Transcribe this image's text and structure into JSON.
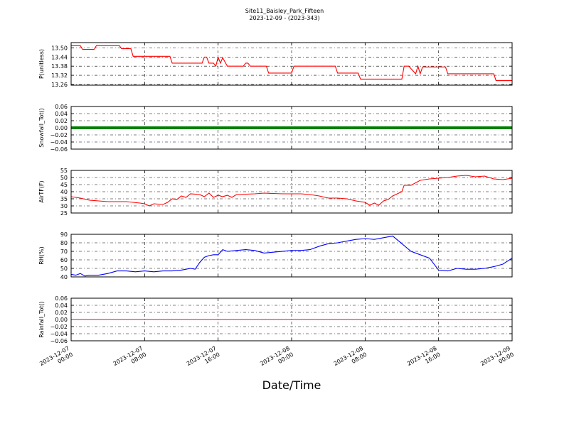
{
  "figure": {
    "title": "Site11_Baisley_Park_Fifteen",
    "subtitle": "2023-12-09 - (2023-343)",
    "xlabel": "Date/Time"
  },
  "x_ticks": [
    {
      "value": "2023-12-07 00:00",
      "line1": "2023-12-07",
      "line2": "00:00"
    },
    {
      "value": "2023-12-07 08:00",
      "line1": "2023-12-07",
      "line2": "08:00"
    },
    {
      "value": "2023-12-07 16:00",
      "line1": "2023-12-07",
      "line2": "16:00"
    },
    {
      "value": "2023-12-08 00:00",
      "line1": "2023-12-08",
      "line2": "00:00"
    },
    {
      "value": "2023-12-08 08:00",
      "line1": "2023-12-08",
      "line2": "08:00"
    },
    {
      "value": "2023-12-08 16:00",
      "line1": "2023-12-08",
      "line2": "16:00"
    },
    {
      "value": "2023-12-09 00:00",
      "line1": "2023-12-09",
      "line2": "00:00"
    }
  ],
  "chart_data": [
    {
      "type": "line",
      "ylabel": "P(unitless)",
      "ylim": [
        13.255,
        13.535
      ],
      "yticks": [
        "13.50",
        "13.44",
        "13.38",
        "13.32",
        "13.26"
      ],
      "grid": true,
      "color": "#ff0000",
      "x": [
        "2023-12-07 00:00",
        "2023-12-07 01:00",
        "2023-12-07 01:15",
        "2023-12-07 02:30",
        "2023-12-07 02:45",
        "2023-12-07 05:15",
        "2023-12-07 05:30",
        "2023-12-07 06:30",
        "2023-12-07 06:45",
        "2023-12-07 10:45",
        "2023-12-07 11:00",
        "2023-12-07 14:15",
        "2023-12-07 14:30",
        "2023-12-07 14:45",
        "2023-12-07 15:00",
        "2023-12-07 15:30",
        "2023-12-07 15:45",
        "2023-12-07 16:00",
        "2023-12-07 16:15",
        "2023-12-07 16:30",
        "2023-12-07 17:00",
        "2023-12-07 18:45",
        "2023-12-07 19:00",
        "2023-12-07 19:15",
        "2023-12-07 19:30",
        "2023-12-07 21:15",
        "2023-12-07 21:30",
        "2023-12-08 00:00",
        "2023-12-08 00:15",
        "2023-12-08 04:45",
        "2023-12-08 05:00",
        "2023-12-08 07:15",
        "2023-12-08 07:30",
        "2023-12-08 12:00",
        "2023-12-08 12:15",
        "2023-12-08 12:45",
        "2023-12-08 13:30",
        "2023-12-08 13:45",
        "2023-12-08 14:00",
        "2023-12-08 14:15",
        "2023-12-08 16:45",
        "2023-12-08 17:00",
        "2023-12-08 19:45",
        "2023-12-08 20:00",
        "2023-12-08 22:00",
        "2023-12-08 22:15",
        "2023-12-09 00:00"
      ],
      "y": [
        13.515,
        13.515,
        13.49,
        13.49,
        13.515,
        13.515,
        13.495,
        13.495,
        13.445,
        13.445,
        13.4,
        13.4,
        13.44,
        13.44,
        13.4,
        13.4,
        13.38,
        13.44,
        13.4,
        13.435,
        13.38,
        13.38,
        13.4,
        13.4,
        13.38,
        13.38,
        13.335,
        13.335,
        13.38,
        13.38,
        13.335,
        13.335,
        13.295,
        13.295,
        13.38,
        13.38,
        13.33,
        13.38,
        13.33,
        13.375,
        13.375,
        13.33,
        13.33,
        13.33,
        13.33,
        13.285,
        13.285
      ]
    },
    {
      "type": "line",
      "ylabel": "Snowfall_Tot()",
      "ylim": [
        -0.06,
        0.06
      ],
      "yticks": [
        "0.06",
        "0.04",
        "0.02",
        "0.00",
        "−0.02",
        "−0.04",
        "−0.06"
      ],
      "grid": true,
      "color": "#008000",
      "markers": true,
      "constant": 0.0
    },
    {
      "type": "line",
      "ylabel": "AirTF(F)",
      "ylim": [
        25,
        55
      ],
      "yticks": [
        "55",
        "50",
        "45",
        "40",
        "35",
        "30",
        "25"
      ],
      "grid": true,
      "color": "#ff0000",
      "x": [
        "2023-12-07 00:00",
        "2023-12-07 01:00",
        "2023-12-07 02:00",
        "2023-12-07 03:00",
        "2023-12-07 04:00",
        "2023-12-07 06:00",
        "2023-12-07 07:30",
        "2023-12-07 08:00",
        "2023-12-07 08:30",
        "2023-12-07 09:00",
        "2023-12-07 10:00",
        "2023-12-07 10:30",
        "2023-12-07 11:00",
        "2023-12-07 11:30",
        "2023-12-07 12:00",
        "2023-12-07 12:30",
        "2023-12-07 13:00",
        "2023-12-07 14:00",
        "2023-12-07 14:30",
        "2023-12-07 15:00",
        "2023-12-07 15:15",
        "2023-12-07 15:30",
        "2023-12-07 16:00",
        "2023-12-07 16:30",
        "2023-12-07 17:00",
        "2023-12-07 17:30",
        "2023-12-07 18:00",
        "2023-12-07 20:00",
        "2023-12-07 21:00",
        "2023-12-07 23:00",
        "2023-12-08 01:00",
        "2023-12-08 02:00",
        "2023-12-08 03:00",
        "2023-12-08 04:00",
        "2023-12-08 05:00",
        "2023-12-08 06:00",
        "2023-12-08 07:00",
        "2023-12-08 07:30",
        "2023-12-08 08:00",
        "2023-12-08 08:30",
        "2023-12-08 09:00",
        "2023-12-08 09:30",
        "2023-12-08 10:00",
        "2023-12-08 10:30",
        "2023-12-08 11:00",
        "2023-12-08 12:00",
        "2023-12-08 12:15",
        "2023-12-08 13:00",
        "2023-12-08 14:00",
        "2023-12-08 15:00",
        "2023-12-08 16:00",
        "2023-12-08 17:00",
        "2023-12-08 18:00",
        "2023-12-08 19:00",
        "2023-12-08 20:00",
        "2023-12-08 21:00",
        "2023-12-08 22:00",
        "2023-12-08 23:00",
        "2023-12-09 00:00"
      ],
      "y": [
        36.5,
        35.5,
        34,
        33.5,
        33,
        33,
        32,
        31.5,
        30,
        31.5,
        31,
        32.5,
        35,
        34.5,
        37,
        36,
        38.5,
        38,
        36.5,
        39,
        37.5,
        36,
        37.5,
        36.5,
        37.5,
        36,
        38,
        38.5,
        39,
        38.5,
        38.5,
        38,
        37,
        35.5,
        35.5,
        35,
        33.5,
        33,
        32.5,
        30.5,
        32,
        30.5,
        33.5,
        34.5,
        37,
        40,
        44.5,
        44.5,
        48,
        49,
        49.5,
        50,
        51,
        51.5,
        50.5,
        51,
        49,
        48.5,
        49.5
      ]
    },
    {
      "type": "line",
      "ylabel": "RH(%)",
      "ylim": [
        40,
        90
      ],
      "yticks": [
        "90",
        "80",
        "70",
        "60",
        "50",
        "40"
      ],
      "grid": true,
      "color": "#0000ff",
      "x": [
        "2023-12-07 00:00",
        "2023-12-07 00:30",
        "2023-12-07 01:00",
        "2023-12-07 01:30",
        "2023-12-07 02:00",
        "2023-12-07 03:00",
        "2023-12-07 04:00",
        "2023-12-07 05:00",
        "2023-12-07 06:00",
        "2023-12-07 07:00",
        "2023-12-07 08:00",
        "2023-12-07 09:00",
        "2023-12-07 10:00",
        "2023-12-07 11:00",
        "2023-12-07 12:00",
        "2023-12-07 12:30",
        "2023-12-07 13:00",
        "2023-12-07 13:30",
        "2023-12-07 14:00",
        "2023-12-07 14:30",
        "2023-12-07 15:00",
        "2023-12-07 15:30",
        "2023-12-07 16:00",
        "2023-12-07 16:30",
        "2023-12-07 17:00",
        "2023-12-07 18:00",
        "2023-12-07 19:00",
        "2023-12-07 20:00",
        "2023-12-07 21:00",
        "2023-12-07 22:00",
        "2023-12-08 00:00",
        "2023-12-08 01:00",
        "2023-12-08 02:00",
        "2023-12-08 03:00",
        "2023-12-08 04:00",
        "2023-12-08 05:00",
        "2023-12-08 06:00",
        "2023-12-08 07:00",
        "2023-12-08 08:00",
        "2023-12-08 09:00",
        "2023-12-08 10:00",
        "2023-12-08 11:00",
        "2023-12-08 12:00",
        "2023-12-08 13:00",
        "2023-12-08 14:00",
        "2023-12-08 15:00",
        "2023-12-08 16:00",
        "2023-12-08 17:00",
        "2023-12-08 18:00",
        "2023-12-08 19:00",
        "2023-12-08 20:00",
        "2023-12-08 21:00",
        "2023-12-08 22:00",
        "2023-12-08 23:00",
        "2023-12-09 00:00"
      ],
      "y": [
        43,
        42,
        44,
        41,
        42,
        42,
        44,
        47,
        47,
        46,
        47,
        46,
        47,
        47,
        48,
        49,
        50,
        49,
        57,
        63,
        65,
        66,
        66,
        72,
        70,
        71,
        72,
        71,
        68,
        69,
        71,
        71,
        72,
        76,
        79,
        80,
        82,
        84,
        85,
        84,
        86,
        88,
        79,
        70,
        66,
        62,
        48,
        47,
        50,
        49,
        49,
        50,
        52,
        55,
        62
      ]
    },
    {
      "type": "line",
      "ylabel": "Rainfall_Tot()",
      "ylim": [
        -0.06,
        0.06
      ],
      "yticks": [
        "0.06",
        "0.04",
        "0.02",
        "0.00",
        "−0.02",
        "−0.04",
        "−0.06"
      ],
      "grid": true,
      "color": "#ff0000",
      "constant": 0.0
    }
  ]
}
